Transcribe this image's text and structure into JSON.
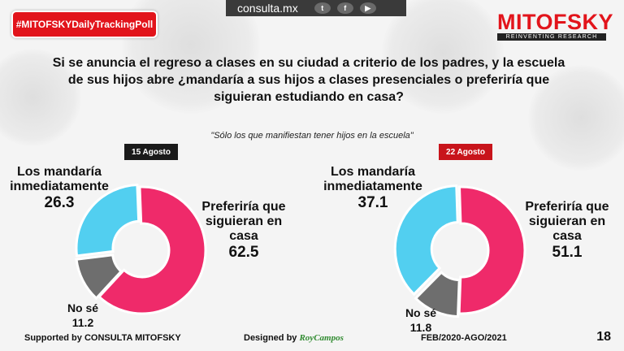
{
  "header": {
    "hashtag": "#MITOFSKYDailyTrackingPoll",
    "site": "consulta.mx",
    "social_icons": [
      "twitter-icon",
      "facebook-icon",
      "youtube-icon"
    ],
    "brand": "MITOFSKY",
    "brand_tagline": "REINVENTING RESEARCH"
  },
  "question": "Si se anuncia el regreso a clases en su ciudad a criterio de los padres, y la escuela de sus hijos abre ¿mandaría a sus hijos a clases presenciales o preferiría que siguieran estudiando en casa?",
  "note": "\"Sólo los que manifiestan tener hijos en la escuela\"",
  "colors": {
    "brand_red": "#e2141b",
    "pink": "#ef2a6a",
    "blue": "#52cff0",
    "gray": "#6e6e6e",
    "dark": "#1a1a1a"
  },
  "chart_data": [
    {
      "type": "pie",
      "title": "15 Agosto",
      "slices": [
        {
          "label": "Preferiría que siguieran en casa",
          "value": 62.5,
          "color": "#ef2a6a"
        },
        {
          "label": "No sé",
          "value": 11.2,
          "color": "#6e6e6e"
        },
        {
          "label": "Los mandaría inmediatamente",
          "value": 26.3,
          "color": "#52cff0"
        }
      ]
    },
    {
      "type": "pie",
      "title": "22 Agosto",
      "slices": [
        {
          "label": "Preferiría que siguieran en casa",
          "value": 51.1,
          "color": "#ef2a6a"
        },
        {
          "label": "No sé",
          "value": 11.8,
          "color": "#6e6e6e"
        },
        {
          "label": "Los mandaría inmediatamente",
          "value": 37.1,
          "color": "#52cff0"
        }
      ]
    }
  ],
  "labels": {
    "left": {
      "mandaria": "Los mandaría inmediatamente",
      "mandaria_val": "26.3",
      "casa": "Preferiría que siguieran en casa",
      "casa_val": "62.5",
      "nose": "No sé",
      "nose_val": "11.2"
    },
    "right": {
      "mandaria": "Los mandaría inmediatamente",
      "mandaria_val": "37.1",
      "casa": "Preferiría que siguieran en casa",
      "casa_val": "51.1",
      "nose": "No sé",
      "nose_val": "11.8"
    }
  },
  "footer": {
    "supported": "Supported by  CONSULTA  MITOFSKY",
    "designed_label": "Designed by",
    "designed_name": "RoyCampos",
    "period": "FEB/2020-AGO/2021",
    "page": "18"
  }
}
